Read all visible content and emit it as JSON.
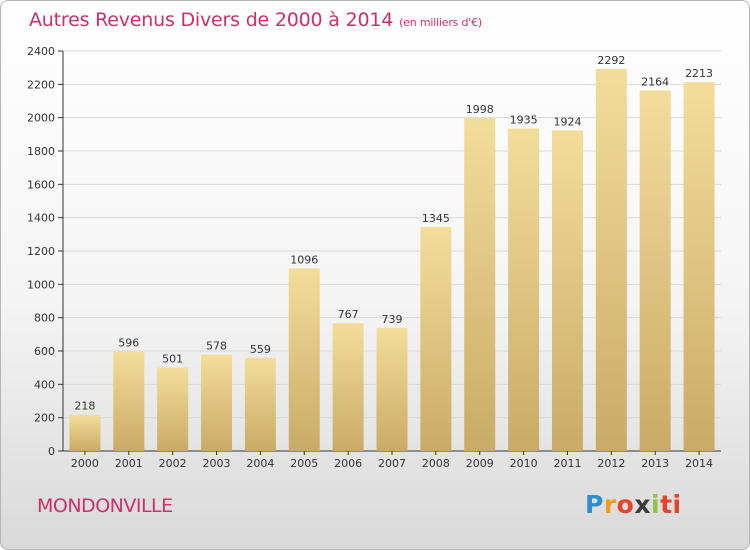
{
  "header": {
    "title": "Autres Revenus Divers de 2000 à 2014",
    "subtitle": "(en milliers d'€)"
  },
  "footer": {
    "commune": "MONDONVILLE",
    "logo_letters": [
      "P",
      "r",
      "o",
      "x",
      "i",
      "ti"
    ]
  },
  "colors": {
    "title": "#c8316b",
    "bar_light": "#f3dd9a",
    "bar_dark": "#c9ab66",
    "grid": "#d9d9d9"
  },
  "chart_data": {
    "type": "bar",
    "title": "Autres Revenus Divers de 2000 à 2014",
    "subtitle": "(en milliers d'€)",
    "xlabel": "",
    "ylabel": "",
    "categories": [
      "2000",
      "2001",
      "2002",
      "2003",
      "2004",
      "2005",
      "2006",
      "2007",
      "2008",
      "2009",
      "2010",
      "2011",
      "2012",
      "2013",
      "2014"
    ],
    "values": [
      218,
      596,
      501,
      578,
      559,
      1096,
      767,
      739,
      1345,
      1998,
      1935,
      1924,
      2292,
      2164,
      2213
    ],
    "ylim": [
      0,
      2400
    ],
    "yticks": [
      0,
      200,
      400,
      600,
      800,
      1000,
      1200,
      1400,
      1600,
      1800,
      2000,
      2200,
      2400
    ],
    "grid": true,
    "legend": "none"
  }
}
